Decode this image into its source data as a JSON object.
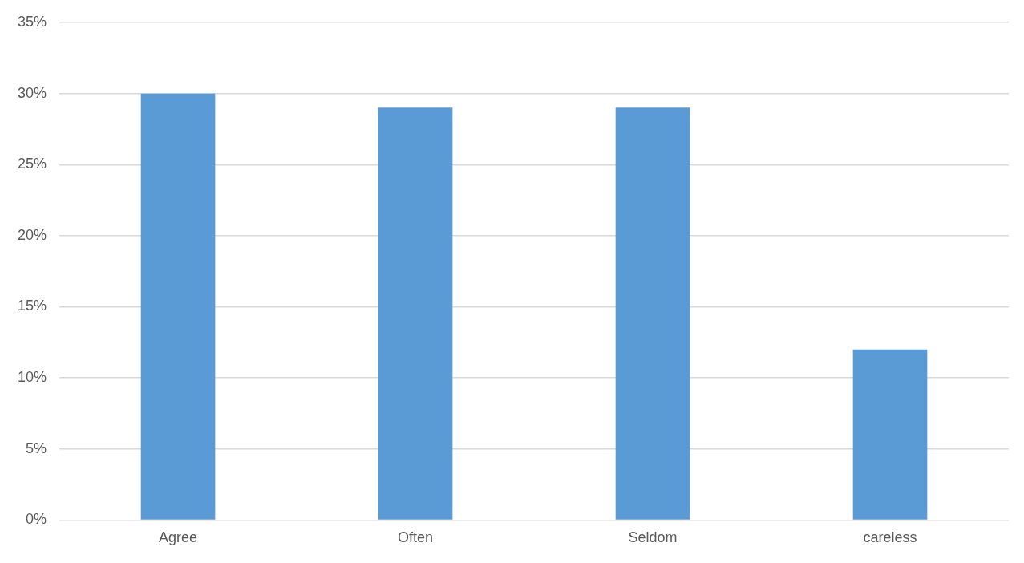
{
  "chart_data": {
    "type": "bar",
    "categories": [
      "Agree",
      "Often",
      "Seldom",
      "careless"
    ],
    "values": [
      30,
      29,
      29,
      12
    ],
    "color": "#5b9bd5",
    "ylim": [
      0,
      35
    ],
    "yticks": [
      {
        "value": 0,
        "label": "0%"
      },
      {
        "value": 5,
        "label": "5%"
      },
      {
        "value": 10,
        "label": "10%"
      },
      {
        "value": 15,
        "label": "15%"
      },
      {
        "value": 20,
        "label": "20%"
      },
      {
        "value": 25,
        "label": "25%"
      },
      {
        "value": 30,
        "label": "30%"
      },
      {
        "value": 35,
        "label": "35%"
      }
    ],
    "grid": "y"
  }
}
